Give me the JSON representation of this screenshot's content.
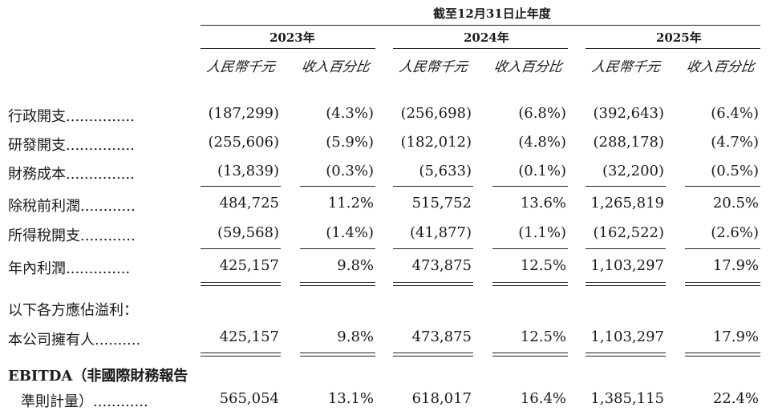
{
  "header": {
    "period": "截至12月31日止年度",
    "years": [
      "2023年",
      "2024年",
      "2025年"
    ],
    "col_rmb": "人民幣千元",
    "col_pct": "收入百分比"
  },
  "rows": {
    "admin": {
      "label": "行政開支",
      "dots": "...............",
      "v": [
        "(187,299)",
        "(4.3%)",
        "(256,698)",
        "(6.8%)",
        "(392,643)",
        "(6.4%)"
      ]
    },
    "rnd": {
      "label": "研發開支",
      "dots": "...............",
      "v": [
        "(255,606)",
        "(5.9%)",
        "(182,012)",
        "(4.8%)",
        "(288,178)",
        "(4.7%)"
      ]
    },
    "fin": {
      "label": "財務成本",
      "dots": "...............",
      "v": [
        "(13,839)",
        "(0.3%)",
        "(5,633)",
        "(0.1%)",
        "(32,200)",
        "(0.5%)"
      ]
    },
    "pbt": {
      "label": "除稅前利潤",
      "dots": "............",
      "v": [
        "484,725",
        "11.2%",
        "515,752",
        "13.6%",
        "1,265,819",
        "20.5%"
      ]
    },
    "tax": {
      "label": "所得稅開支",
      "dots": "............",
      "v": [
        "(59,568)",
        "(1.4%)",
        "(41,877)",
        "(1.1%)",
        "(162,522)",
        "(2.6%)"
      ]
    },
    "profit": {
      "label": "年內利潤",
      "dots": "..............",
      "v": [
        "425,157",
        "9.8%",
        "473,875",
        "12.5%",
        "1,103,297",
        "17.9%"
      ]
    },
    "attrib_heading": {
      "label": "以下各方應佔溢利："
    },
    "owners": {
      "label": "本公司擁有人",
      "dots": "..........",
      "v": [
        "425,157",
        "9.8%",
        "473,875",
        "12.5%",
        "1,103,297",
        "17.9%"
      ]
    },
    "ebitda": {
      "label1": "EBITDA（非國際財務報告",
      "label2": "準則計量）",
      "dots": "............",
      "v": [
        "565,054",
        "13.1%",
        "618,017",
        "16.4%",
        "1,385,115",
        "22.4%"
      ]
    }
  }
}
